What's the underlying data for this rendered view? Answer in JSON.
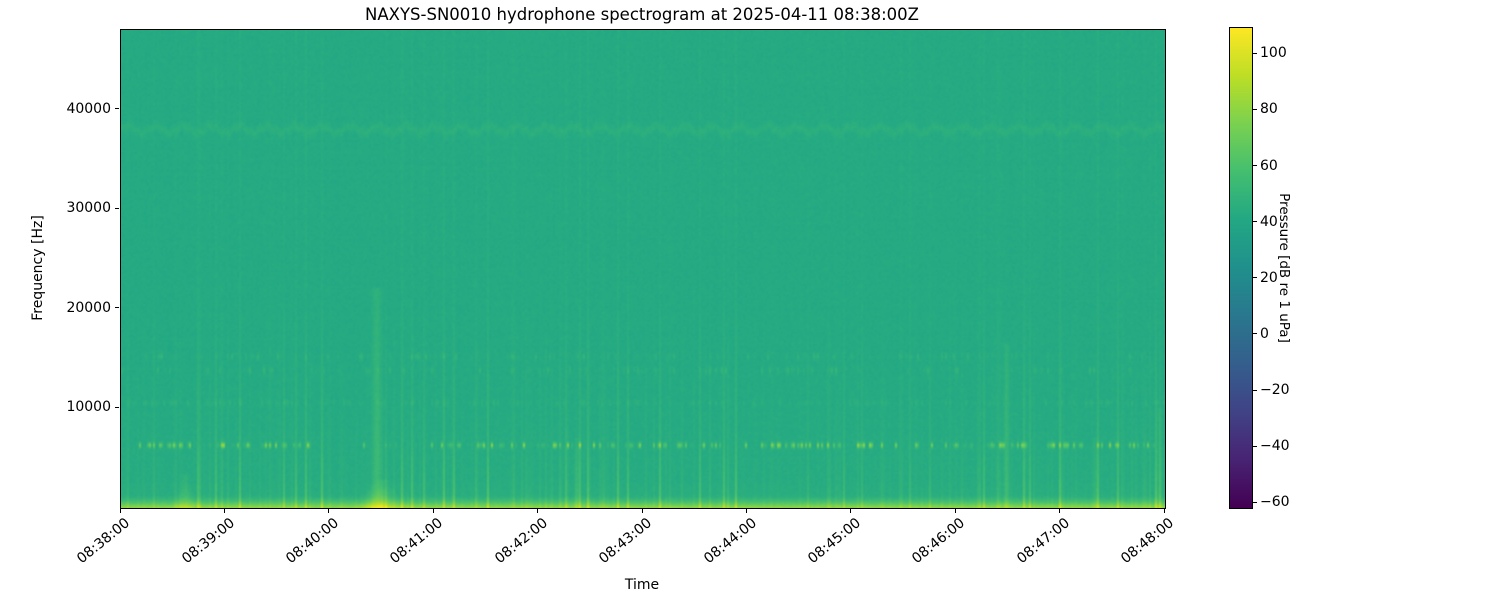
{
  "chart_data": {
    "type": "heatmap",
    "title": "NAXYS-SN0010 hydrophone spectrogram at 2025-04-11 08:38:00Z",
    "xlabel": "Time",
    "ylabel": "Frequency [Hz]",
    "x_tick_labels": [
      "08:38:00",
      "08:39:00",
      "08:40:00",
      "08:41:00",
      "08:42:00",
      "08:43:00",
      "08:44:00",
      "08:45:00",
      "08:46:00",
      "08:47:00",
      "08:48:00"
    ],
    "x_range": {
      "start_label": "08:38:00",
      "end_label": "08:48:00",
      "duration_s": 600
    },
    "y_tick_values": [
      10000,
      20000,
      30000,
      40000
    ],
    "y_tick_labels": [
      "10000",
      "20000",
      "30000",
      "40000"
    ],
    "y_range_hz": [
      0,
      48000
    ],
    "grid": false,
    "colormap": "viridis",
    "colorbar": {
      "label": "Pressure [dB re 1 uPa]",
      "tick_values": [
        100,
        80,
        60,
        40,
        20,
        0,
        -20,
        -40,
        -60
      ],
      "tick_labels": [
        "100",
        "80",
        "60",
        "40",
        "20",
        "0",
        "−20",
        "−40",
        "−60"
      ],
      "vmin": -62,
      "vmax": 109,
      "position": "right"
    },
    "background_level_db": 42,
    "texture_noise_db": 1.4,
    "active_periods_s": [
      [
        15,
        118
      ],
      [
        150,
        345
      ],
      [
        368,
        428
      ],
      [
        448,
        585
      ]
    ],
    "features": [
      {
        "kind": "low_band",
        "name": "surface-low-frequency-noise",
        "max_hz": 1300,
        "peak_extra_db": 33
      },
      {
        "kind": "low_band",
        "name": "low-frequency-hump",
        "max_hz": 3000,
        "peak_extra_db": 2.5
      },
      {
        "kind": "broad_lift",
        "name": "below-12khz-lift",
        "max_hz": 12000,
        "extra_db": 1.5
      },
      {
        "kind": "wavy_band",
        "name": "38khz-tonal-band",
        "center_hz": 38000,
        "half_width_hz": 430,
        "extra_db": 4.2,
        "wobble_hz": 330,
        "period_s": 16
      },
      {
        "kind": "dash_row",
        "name": "6.3khz-call-row",
        "center_hz": 6300,
        "half_width_hz": 260,
        "max_extra_db": 40,
        "base_prob": 0.16,
        "active_prob": 0.55,
        "bright_prob": 0.05
      },
      {
        "kind": "dash_row",
        "name": "10.5khz-faint-band",
        "center_hz": 10550,
        "half_width_hz": 300,
        "max_extra_db": 6,
        "base_prob": 0.5,
        "active_prob": 0.5,
        "bright_prob": 0
      },
      {
        "kind": "dash_row",
        "name": "13.8khz-faint-row",
        "center_hz": 13800,
        "half_width_hz": 330,
        "max_extra_db": 9,
        "base_prob": 0.1,
        "active_prob": 0.4,
        "bright_prob": 0.01
      },
      {
        "kind": "dash_row",
        "name": "15.2khz-faint-row",
        "center_hz": 15200,
        "half_width_hz": 300,
        "max_extra_db": 8,
        "base_prob": 0.08,
        "active_prob": 0.3,
        "bright_prob": 0.01
      },
      {
        "kind": "clicks",
        "name": "broadband-click-streaks",
        "prob": 0.45,
        "mean_extra_db": 2.2,
        "max_extra_db": 13,
        "rolloff_hz": 22000,
        "strong_prob": 0.03
      },
      {
        "kind": "events",
        "name": "strong-transients",
        "items": [
          {
            "t_s": 37,
            "fmax_hz": 3500,
            "extra_db": 10,
            "width_s": 2.0,
            "foot": true
          },
          {
            "t_s": 147,
            "fmax_hz": 22000,
            "extra_db": 12,
            "width_s": 2.4,
            "foot": true
          },
          {
            "t_s": 151,
            "fmax_hz": 2800,
            "extra_db": 9,
            "width_s": 4.0,
            "foot": true
          },
          {
            "t_s": 262,
            "fmax_hz": 7000,
            "extra_db": 10,
            "width_s": 1.2,
            "foot": false
          },
          {
            "t_s": 509,
            "fmax_hz": 16500,
            "extra_db": 11,
            "width_s": 1.5,
            "foot": false
          },
          {
            "t_s": 560,
            "fmax_hz": 7000,
            "extra_db": 8,
            "width_s": 1.1,
            "foot": false
          },
          {
            "t_s": 597,
            "fmax_hz": 10000,
            "extra_db": 8,
            "width_s": 1.4,
            "foot": false
          }
        ]
      }
    ]
  }
}
